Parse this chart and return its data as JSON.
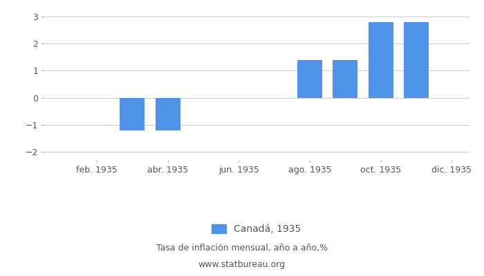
{
  "month_indices": [
    1,
    2,
    3,
    4,
    5,
    6,
    7,
    8,
    9,
    10,
    11,
    12
  ],
  "values": [
    null,
    null,
    -1.2,
    -1.2,
    null,
    null,
    null,
    1.4,
    1.4,
    2.8,
    2.8,
    null
  ],
  "bar_color": "#4d94e8",
  "xtick_positions": [
    2,
    4,
    6,
    8,
    10,
    12
  ],
  "xtick_labels": [
    "feb. 1935",
    "abr. 1935",
    "jun. 1935",
    "ago. 1935",
    "oct. 1935",
    "dic. 1935"
  ],
  "ylim": [
    -2.3,
    3.3
  ],
  "yticks": [
    -2,
    -1,
    0,
    1,
    2,
    3
  ],
  "legend_label": "Canadá, 1935",
  "footnote_line1": "Tasa de inflación mensual, año a año,%",
  "footnote_line2": "www.statbureau.org",
  "background_color": "#ffffff",
  "grid_color": "#cccccc",
  "tick_color": "#555555",
  "label_fontsize": 9,
  "legend_fontsize": 10,
  "footnote_fontsize": 9,
  "bar_width": 0.7
}
